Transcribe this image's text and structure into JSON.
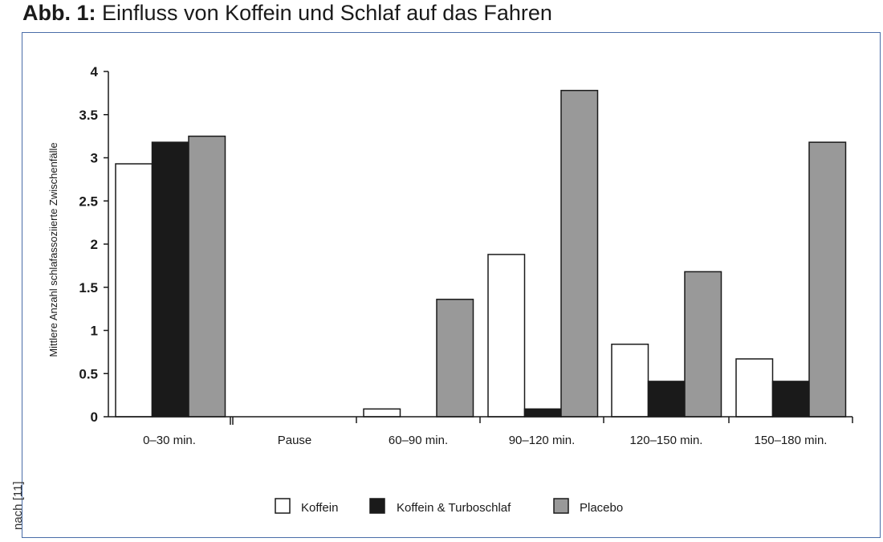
{
  "figure": {
    "label": "Abb. 1:",
    "title": "Einfluss von Koffein und Schlaf auf das Fahren",
    "source": "nach [11]"
  },
  "colors": {
    "frame": "#4a6da8",
    "koffein": "#ffffff",
    "turboschlaf": "#1a1a1a",
    "placebo": "#999999"
  },
  "chart_data": {
    "type": "bar",
    "ylabel": "Mittlere Anzahl schlafassoziierte Zwischenfälle",
    "xlabel": "",
    "ylim": [
      0,
      4
    ],
    "yticks": [
      "0",
      "0.5",
      "1",
      "1.5",
      "2",
      "2.5",
      "3",
      "3.5",
      "4"
    ],
    "grid": false,
    "legend_position": "bottom",
    "categories": [
      "0–30 min.",
      "Pause",
      "60–90 min.",
      "90–120 min.",
      "120–150 min.",
      "150–180 min."
    ],
    "series": [
      {
        "name": "Koffein",
        "color": "#ffffff",
        "values": [
          2.93,
          null,
          0.09,
          1.88,
          0.84,
          0.67
        ]
      },
      {
        "name": "Koffein & Turboschlaf",
        "color": "#1a1a1a",
        "values": [
          3.18,
          null,
          0,
          0.09,
          0.41,
          0.41
        ]
      },
      {
        "name": "Placebo",
        "color": "#999999",
        "values": [
          3.25,
          null,
          1.36,
          3.78,
          1.68,
          3.18
        ]
      }
    ]
  }
}
